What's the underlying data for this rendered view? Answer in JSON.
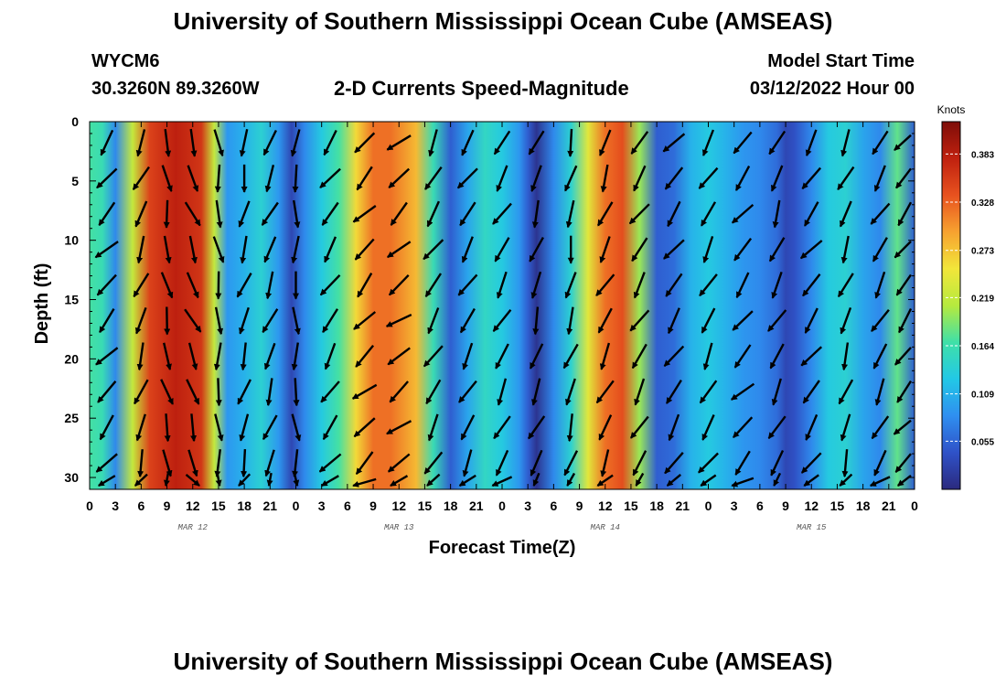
{
  "header": {
    "title": "University of Southern Mississippi Ocean Cube (AMSEAS)",
    "station": "WYCM6",
    "coords": "30.3260N  89.3260W",
    "plot_title": "2-D Currents Speed-Magnitude",
    "model_start_label": "Model Start Time",
    "model_start_value": "03/12/2022 Hour 00"
  },
  "footer": {
    "title": "University of Southern Mississippi Ocean Cube (AMSEAS)"
  },
  "colors": {
    "scale": [
      "#2b2a7e",
      "#2f52c8",
      "#2f8ff0",
      "#22c8e6",
      "#3fe0a8",
      "#b6ea3e",
      "#f2e63a",
      "#f7a230",
      "#e8521f",
      "#c0210f",
      "#7e0d08"
    ],
    "arrow": "#000000"
  },
  "chart_data": {
    "type": "heatmap",
    "title": "2-D Currents Speed-Magnitude",
    "xlabel": "Forecast Time(Z)",
    "ylabel": "Depth (ft)",
    "x_ticks": [
      "0",
      "3",
      "6",
      "9",
      "12",
      "15",
      "18",
      "21",
      "0",
      "3",
      "6",
      "9",
      "12",
      "15",
      "18",
      "21",
      "0",
      "3",
      "6",
      "9",
      "12",
      "15",
      "18",
      "21",
      "0",
      "3",
      "6",
      "9",
      "12",
      "15",
      "18",
      "21",
      "0"
    ],
    "x_range_hours": [
      0,
      96
    ],
    "date_labels": [
      {
        "text": "MAR 12",
        "hour": 12
      },
      {
        "text": "MAR 13",
        "hour": 36
      },
      {
        "text": "MAR 14",
        "hour": 60
      },
      {
        "text": "MAR 15",
        "hour": 84
      }
    ],
    "y_ticks": [
      0,
      5,
      10,
      15,
      20,
      25,
      30
    ],
    "y_range_ft": [
      0,
      31
    ],
    "colorbar": {
      "unit": "Knots",
      "ticks": [
        0.055,
        0.109,
        0.164,
        0.219,
        0.273,
        0.328,
        0.383
      ],
      "range": [
        0.0,
        0.42
      ]
    },
    "speed_profile_hours": [
      0,
      1.5,
      3,
      5,
      7,
      10,
      13,
      14.5,
      16,
      18,
      20,
      22,
      23.5,
      25,
      27,
      29,
      31,
      33,
      35,
      38,
      40,
      42,
      44,
      46,
      48,
      50,
      51,
      52,
      54,
      56,
      58,
      60,
      62,
      64,
      66,
      68,
      70,
      72,
      74,
      76,
      78,
      80,
      81,
      82,
      84,
      86,
      88,
      90,
      92,
      94,
      96
    ],
    "speed_profile_knots": [
      0.17,
      0.16,
      0.08,
      0.22,
      0.35,
      0.38,
      0.36,
      0.22,
      0.09,
      0.11,
      0.14,
      0.09,
      0.03,
      0.08,
      0.13,
      0.17,
      0.26,
      0.32,
      0.32,
      0.28,
      0.16,
      0.05,
      0.1,
      0.15,
      0.13,
      0.09,
      0.05,
      0.01,
      0.08,
      0.14,
      0.24,
      0.32,
      0.34,
      0.2,
      0.05,
      0.06,
      0.11,
      0.13,
      0.11,
      0.09,
      0.08,
      0.06,
      0.03,
      0.04,
      0.08,
      0.13,
      0.14,
      0.1,
      0.08,
      0.18,
      0.05
    ],
    "vector_hours": [
      2,
      6,
      9,
      12,
      15,
      18,
      21,
      24,
      28,
      32,
      36,
      40,
      44,
      48,
      52,
      56,
      60,
      64,
      68,
      72,
      76,
      80,
      84,
      88,
      92,
      95
    ],
    "vector_depths_ft": [
      1,
      4,
      7,
      10,
      13,
      16,
      19,
      22,
      25,
      28,
      30
    ],
    "vector_direction_deg": [
      220,
      200,
      170,
      160,
      175,
      195,
      200,
      180,
      215,
      225,
      230,
      210,
      210,
      210,
      200,
      195,
      205,
      210,
      215,
      210,
      220,
      205,
      215,
      200,
      210,
      225
    ]
  }
}
